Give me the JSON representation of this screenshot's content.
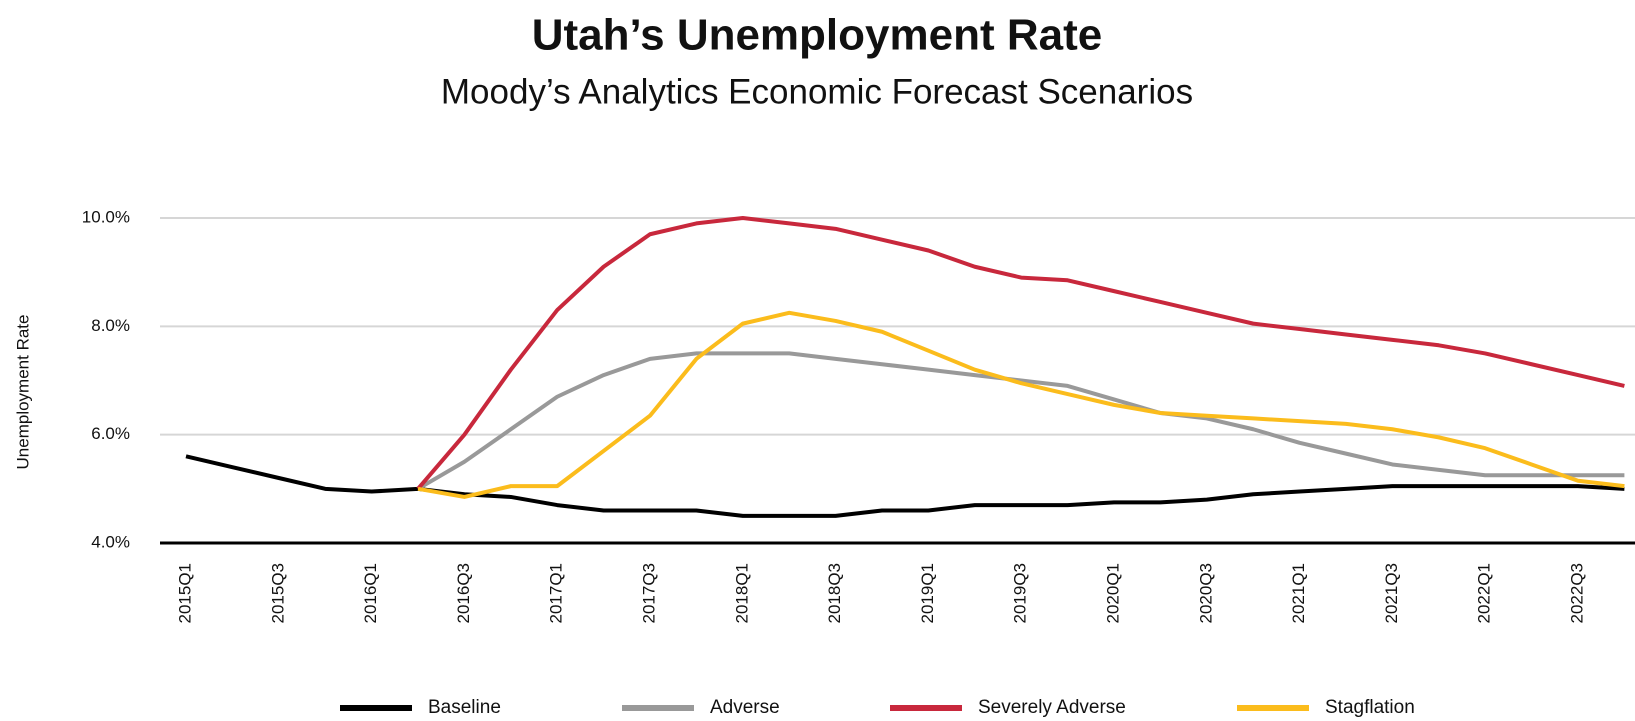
{
  "chart_data": {
    "type": "line",
    "title": "Utah’s Unemployment Rate",
    "subtitle": "Moody’s Analytics Economic Forecast Scenarios",
    "y_label": "Unemployment Rate",
    "categories": [
      "2015Q1",
      null,
      "2015Q3",
      null,
      "2016Q1",
      null,
      "2016Q3",
      null,
      "2017Q1",
      null,
      "2017Q3",
      null,
      "2018Q1",
      null,
      "2018Q3",
      null,
      "2019Q1",
      null,
      "2019Q3",
      null,
      "2020Q1",
      null,
      "2020Q3",
      null,
      "2021Q1",
      null,
      "2021Q3",
      null,
      "2022Q1",
      null,
      "2022Q3",
      null
    ],
    "ylim": [
      4,
      10
    ],
    "yticks": [
      {
        "value": 4,
        "label": "4.0%"
      },
      {
        "value": 6,
        "label": "6.0%"
      },
      {
        "value": 8,
        "label": "8.0%"
      },
      {
        "value": 10,
        "label": "10.0%"
      }
    ],
    "grid": true,
    "legend": "bottom",
    "series": [
      {
        "name": "Baseline",
        "color": "#000000",
        "values": [
          5.6,
          5.4,
          5.2,
          5.0,
          4.95,
          5.0,
          4.9,
          4.85,
          4.7,
          4.6,
          4.6,
          4.6,
          4.5,
          4.5,
          4.5,
          4.6,
          4.6,
          4.7,
          4.7,
          4.7,
          4.75,
          4.75,
          4.8,
          4.9,
          4.95,
          5.0,
          5.05,
          5.05,
          5.05,
          5.05,
          5.05,
          5.0
        ]
      },
      {
        "name": "Adverse",
        "color": "#999999",
        "values": [
          null,
          null,
          null,
          null,
          null,
          5.0,
          5.5,
          6.1,
          6.7,
          7.1,
          7.4,
          7.5,
          7.5,
          7.5,
          7.4,
          7.3,
          7.2,
          7.1,
          7.0,
          6.9,
          6.65,
          6.4,
          6.3,
          6.1,
          5.85,
          5.65,
          5.45,
          5.35,
          5.25,
          5.25,
          5.25,
          5.25
        ]
      },
      {
        "name": "Severely Adverse",
        "color": "#c8283c",
        "values": [
          null,
          null,
          null,
          null,
          null,
          5.0,
          6.0,
          7.2,
          8.3,
          9.1,
          9.7,
          9.9,
          10.0,
          9.9,
          9.8,
          9.6,
          9.4,
          9.1,
          8.9,
          8.85,
          8.65,
          8.45,
          8.25,
          8.05,
          7.95,
          7.85,
          7.75,
          7.65,
          7.5,
          7.3,
          7.1,
          6.9
        ]
      },
      {
        "name": "Stagflation",
        "color": "#fbbc1c",
        "values": [
          null,
          null,
          null,
          null,
          null,
          5.0,
          4.85,
          5.05,
          5.05,
          5.7,
          6.35,
          7.4,
          8.05,
          8.25,
          8.1,
          7.9,
          7.55,
          7.2,
          6.95,
          6.75,
          6.55,
          6.4,
          6.35,
          6.3,
          6.25,
          6.2,
          6.1,
          5.95,
          5.75,
          5.45,
          5.15,
          5.05
        ]
      }
    ]
  }
}
